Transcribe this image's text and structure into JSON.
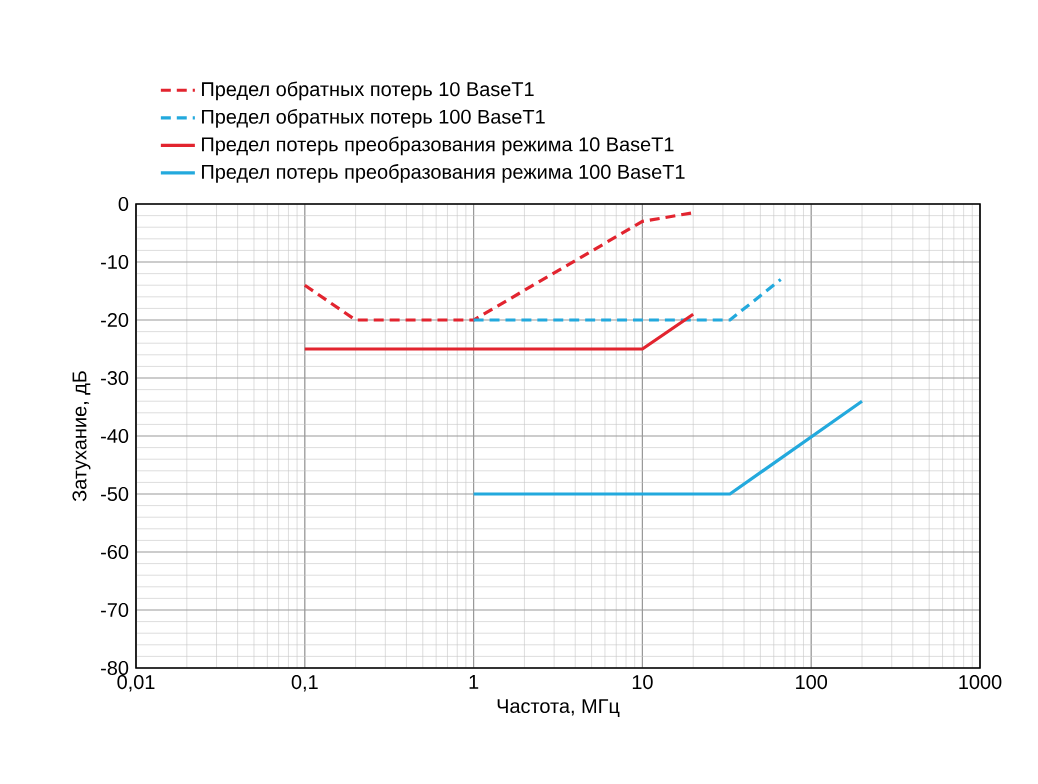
{
  "chart_data": {
    "type": "line",
    "xlabel": "Частота, МГц",
    "ylabel": "Затухание, дБ",
    "log": "x",
    "xlim": [
      0.01,
      1000
    ],
    "ylim": [
      -80,
      0
    ],
    "xticks": [
      {
        "value": 0.01,
        "label": "0,01"
      },
      {
        "value": 0.1,
        "label": "0,1"
      },
      1,
      10,
      100,
      1000
    ],
    "yticks": [
      -80,
      -70,
      -60,
      -50,
      -40,
      -30,
      -20,
      -10,
      0
    ],
    "grid": true,
    "legend": "top",
    "series": [
      {
        "name": "Предел обратных потерь  10 BaseT1",
        "color": "#e2242f",
        "line_style": "dashed",
        "x": [
          0.1,
          0.2,
          1,
          10,
          20
        ],
        "values": [
          -14,
          -20,
          -20,
          -3,
          -1.5
        ]
      },
      {
        "name": "Предел  обратных потерь 100 BaseT1",
        "color": "#23a9dd",
        "line_style": "dashed",
        "x": [
          1,
          33,
          66
        ],
        "values": [
          -20,
          -20,
          -13
        ]
      },
      {
        "name": "Предел потерь преобразования режима 10 BaseT1",
        "color": "#e2242f",
        "line_style": "solid",
        "x": [
          0.1,
          10,
          20
        ],
        "values": [
          -25,
          -25,
          -19
        ]
      },
      {
        "name": "Предел потерь преобразования режима 100 BaseT1",
        "color": "#23a9dd",
        "line_style": "solid",
        "x": [
          1,
          33,
          200
        ],
        "values": [
          -50,
          -50,
          -34
        ]
      }
    ]
  }
}
